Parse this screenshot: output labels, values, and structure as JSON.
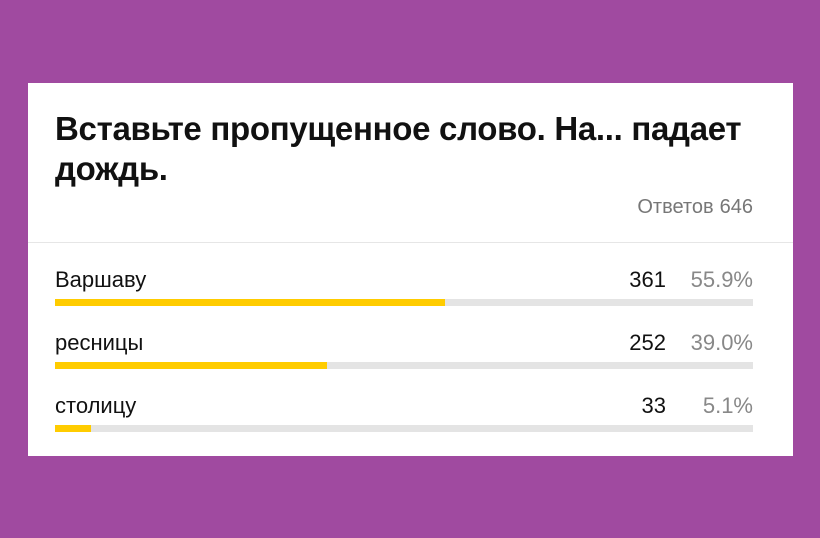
{
  "poll": {
    "question": "Вставьте пропущенное слово. На... падает дождь.",
    "answers_label": "Ответов",
    "answers_total": "646",
    "accent_color": "#ffcc00",
    "options": [
      {
        "label": "Варшаву",
        "count": "361",
        "percent": "55.9%",
        "fraction": 0.559
      },
      {
        "label": "ресницы",
        "count": "252",
        "percent": "39.0%",
        "fraction": 0.39
      },
      {
        "label": "столицу",
        "count": "33",
        "percent": "5.1%",
        "fraction": 0.051
      }
    ]
  }
}
